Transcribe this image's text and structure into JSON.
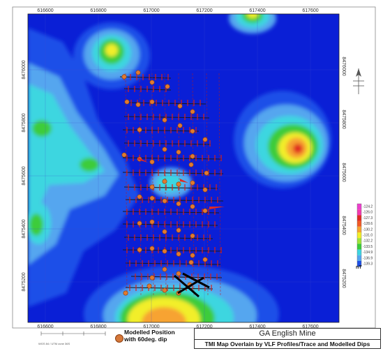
{
  "map": {
    "top_ticks": [
      "616600",
      "616800",
      "617000",
      "617200",
      "617400",
      "617600"
    ],
    "bottom_ticks": [
      "616600",
      "616800",
      "617000",
      "617200",
      "617400",
      "617600"
    ],
    "left_ticks": [
      "8476000",
      "8475800",
      "8475600",
      "8475400",
      "8475200"
    ],
    "right_ticks": [
      "8476000",
      "8475800",
      "8475600",
      "8475400",
      "8475200"
    ],
    "colors": {
      "deep": "#0a1fd6",
      "blue": "#1e50e8",
      "light_blue": "#54a6ef",
      "cyan": "#3cd6e0",
      "green": "#3ccc3a",
      "yellow": "#f2ee2a",
      "orange": "#f7a330",
      "red": "#e02a24",
      "magenta": "#ec3fcc"
    }
  },
  "legend": {
    "values": [
      "-124.2",
      "-126.0",
      "-127.3",
      "-128.6",
      "-130.2",
      "-131.0",
      "-132.2",
      "-133.5",
      "-134.9",
      "-136.9",
      "-139.3"
    ],
    "colors": [
      "#ec3fcc",
      "#f23ab0",
      "#e02a24",
      "#f25a26",
      "#f7a330",
      "#f2ee2a",
      "#9ee43a",
      "#3ccc3a",
      "#3cd6e0",
      "#54a6ef",
      "#1e50e8"
    ],
    "unit": "nT"
  },
  "footer": {
    "title": "GA English Mine",
    "subtitle": "TMI Map Overlain by VLF Profiles/Trace and Modelled Dips",
    "marker_label_line1": "Modelled Position",
    "marker_label_line2": "with 60deg. dip",
    "scale_caption": "WGS 84 / UTM zone 36S"
  }
}
